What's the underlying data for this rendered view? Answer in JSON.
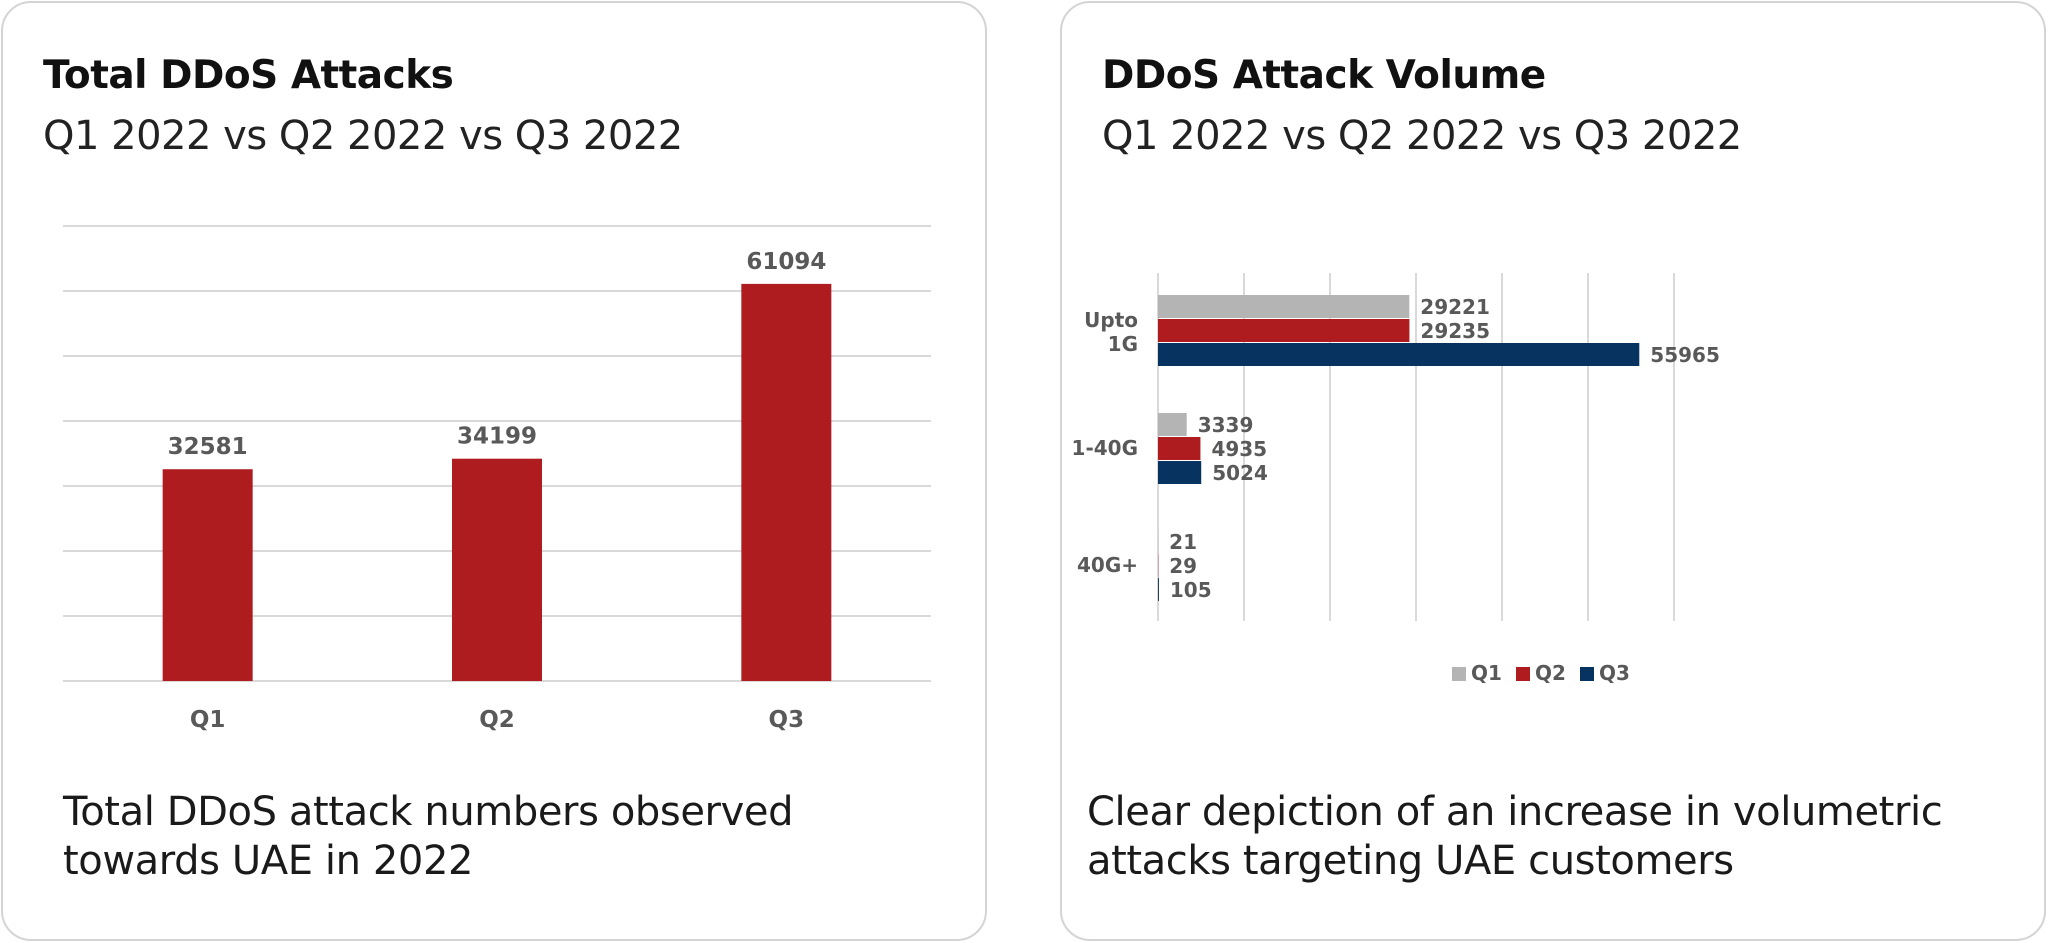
{
  "left_panel": {
    "title": "Total DDoS Attacks",
    "subtitle": "Q1 2022 vs Q2 2022 vs Q3 2022",
    "caption_line1": "Total DDoS attack numbers observed",
    "caption_line2": "towards UAE in 2022"
  },
  "right_panel": {
    "title": "DDoS Attack Volume",
    "subtitle": "Q1 2022 vs Q2 2022 vs Q3 2022",
    "caption_line1": "Clear depiction of an increase in volumetric",
    "caption_line2": "attacks targeting UAE customers"
  },
  "colors": {
    "Q1": "#b4b4b4",
    "Q2": "#ae1c1f",
    "Q3": "#06335f",
    "bar_single": "#ae1c1f",
    "grid": "#d9d9d9",
    "label": "#595959"
  },
  "chart_data": [
    {
      "type": "bar",
      "orientation": "vertical",
      "categories": [
        "Q1",
        "Q2",
        "Q3"
      ],
      "values": [
        32581,
        34199,
        61094
      ],
      "ylim": [
        0,
        70000
      ],
      "grid": true,
      "data_labels": true
    },
    {
      "type": "bar",
      "orientation": "horizontal",
      "categories": [
        "Upto 1G",
        "1-40G",
        "40G+"
      ],
      "series": [
        {
          "name": "Q1",
          "values": [
            29221,
            3339,
            21
          ]
        },
        {
          "name": "Q2",
          "values": [
            29235,
            4935,
            29
          ]
        },
        {
          "name": "Q3",
          "values": [
            55965,
            5024,
            105
          ]
        }
      ],
      "xlim": [
        0,
        60000
      ],
      "grid": true,
      "data_labels": true,
      "legend": "bottom"
    }
  ]
}
